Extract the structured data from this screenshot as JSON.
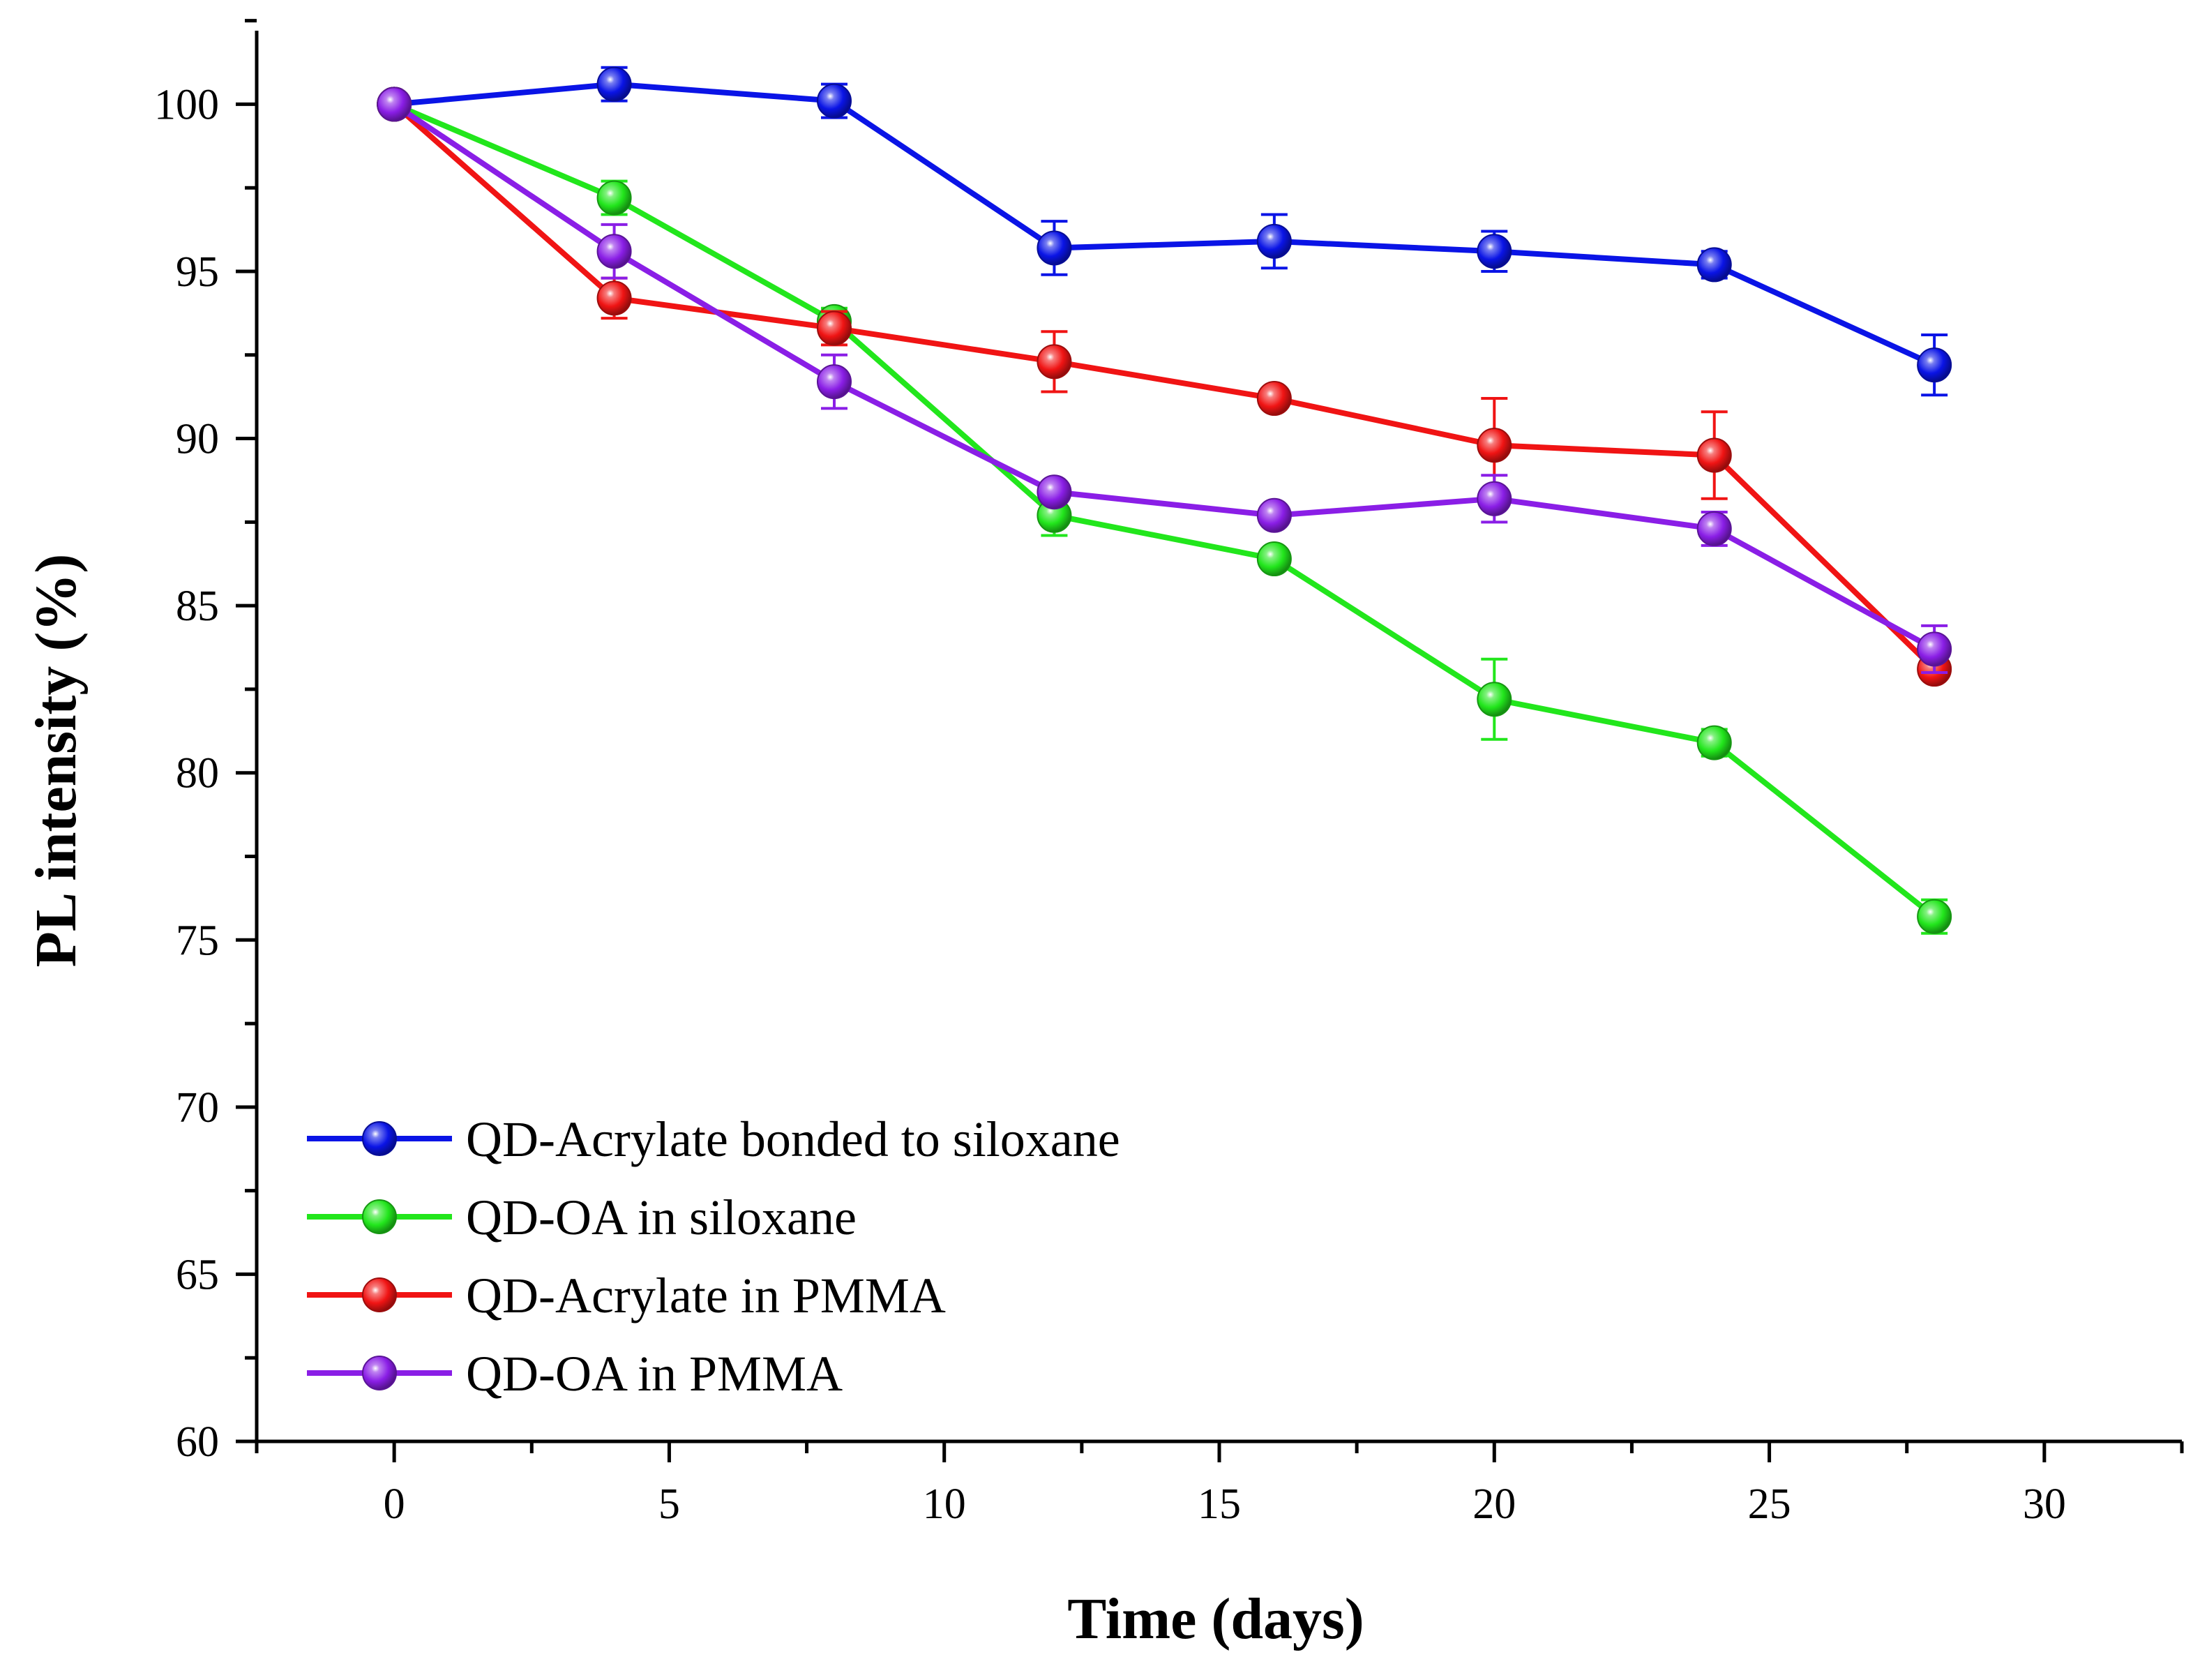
{
  "chart_data": {
    "type": "line",
    "title": "",
    "xlabel": "Time (days)",
    "ylabel": "PL intensity (%)",
    "xlim": [
      -2.5,
      32.5
    ],
    "ylim": [
      60,
      102.2
    ],
    "x_ticks": [
      0,
      5,
      10,
      15,
      20,
      25,
      30
    ],
    "y_ticks": [
      60,
      65,
      70,
      75,
      80,
      85,
      90,
      95,
      100
    ],
    "x": [
      0,
      4,
      8,
      12,
      16,
      20,
      24,
      28
    ],
    "legend_position": "bottom-left",
    "grid": false,
    "series": [
      {
        "name": "QD-Acrylate bonded to siloxane",
        "color": "#0a14e6",
        "values": [
          100.0,
          100.6,
          100.1,
          95.7,
          95.9,
          95.6,
          95.2,
          92.2
        ],
        "errors": [
          0.15,
          0.5,
          0.5,
          0.8,
          0.8,
          0.6,
          0.4,
          0.9
        ]
      },
      {
        "name": "QD-OA in siloxane",
        "color": "#22e61c",
        "values": [
          100.0,
          97.2,
          93.5,
          87.7,
          86.4,
          82.2,
          80.9,
          75.7
        ],
        "errors": [
          0.15,
          0.5,
          0.4,
          0.6,
          0.3,
          1.2,
          0.4,
          0.5
        ]
      },
      {
        "name": "QD-Acrylate in PMMA",
        "color": "#f01414",
        "values": [
          100.0,
          94.2,
          93.3,
          92.3,
          91.2,
          89.8,
          89.5,
          83.1
        ],
        "errors": [
          0.15,
          0.6,
          0.5,
          0.9,
          0.3,
          1.4,
          1.3,
          0.3
        ]
      },
      {
        "name": "QD-OA in PMMA",
        "color": "#8a1ee6",
        "values": [
          100.0,
          95.6,
          91.7,
          88.4,
          87.7,
          88.2,
          87.3,
          83.7
        ],
        "errors": [
          0.15,
          0.8,
          0.8,
          0.3,
          0.3,
          0.7,
          0.5,
          0.7
        ]
      }
    ]
  }
}
